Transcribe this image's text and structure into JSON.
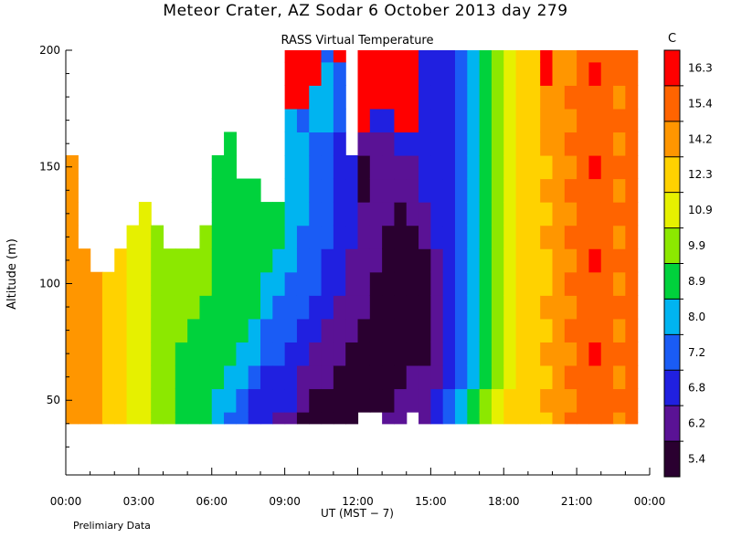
{
  "header": {
    "title": "Meteor Crater, AZ   Sodar    6 October 2013   day 279"
  },
  "footnote": "Prelimiary Data",
  "chart_data": {
    "type": "heatmap",
    "title": "RASS Virtual Temperature",
    "xlabel": "UT   (MST − 7)",
    "ylabel": "Altitude (m)",
    "x_ticks": [
      "00:00",
      "03:00",
      "06:00",
      "09:00",
      "12:00",
      "15:00",
      "18:00",
      "21:00",
      "00:00"
    ],
    "x_tick_hours": [
      0,
      3,
      6,
      9,
      12,
      15,
      18,
      21,
      24
    ],
    "xlim_hours": [
      0,
      24
    ],
    "y_ticks": [
      50,
      100,
      150,
      200
    ],
    "ylim": [
      18,
      200
    ],
    "colorbar": {
      "unit": "C",
      "labels": [
        "5.4",
        "6.2",
        "6.8",
        "7.2",
        "8.0",
        "8.9",
        "9.9",
        "10.9",
        "12.3",
        "14.2",
        "15.4",
        "16.3"
      ],
      "colors": [
        "#2a0030",
        "#5a1295",
        "#2020e0",
        "#1a5cf5",
        "#00b4f0",
        "#00d23c",
        "#8ce800",
        "#e6f000",
        "#ffd200",
        "#ff9600",
        "#ff6400",
        "#ff0000"
      ]
    },
    "data_note": "Values are bin indices 0-11 into colorbar.colors; null = no data",
    "altitudes_m": [
      40,
      50,
      60,
      70,
      80,
      90,
      100,
      110,
      120,
      130,
      140,
      150,
      160,
      170,
      180,
      190,
      200
    ],
    "hours": [
      0.0,
      0.5,
      1.0,
      1.5,
      2.0,
      2.5,
      3.0,
      3.5,
      4.0,
      4.5,
      5.0,
      5.5,
      6.0,
      6.5,
      7.0,
      7.5,
      8.0,
      8.5,
      9.0,
      9.5,
      10.0,
      10.5,
      11.0,
      11.5,
      12.0,
      12.5,
      13.0,
      13.5,
      14.0,
      14.5,
      15.0,
      15.5,
      16.0,
      16.5,
      17.0,
      17.5,
      18.0,
      18.5,
      19.0,
      19.5,
      20.0,
      20.5,
      21.0,
      21.5,
      22.0,
      22.5,
      23.0
    ],
    "values": [
      [
        9,
        9,
        9,
        9,
        9,
        9,
        9,
        9,
        9,
        9,
        9,
        9,
        null,
        null,
        null,
        null,
        null
      ],
      [
        9,
        9,
        9,
        9,
        9,
        9,
        9,
        9,
        null,
        null,
        null,
        null,
        null,
        null,
        null,
        null,
        null
      ],
      [
        9,
        9,
        9,
        9,
        9,
        9,
        9,
        null,
        null,
        null,
        null,
        null,
        null,
        null,
        null,
        null,
        null
      ],
      [
        8,
        8,
        8,
        8,
        8,
        8,
        8,
        null,
        null,
        null,
        null,
        null,
        null,
        null,
        null,
        null,
        null
      ],
      [
        8,
        8,
        8,
        8,
        8,
        8,
        8,
        8,
        null,
        null,
        null,
        null,
        null,
        null,
        null,
        null,
        null
      ],
      [
        7,
        7,
        7,
        7,
        7,
        7,
        7,
        7,
        7,
        null,
        null,
        null,
        null,
        null,
        null,
        null,
        null
      ],
      [
        7,
        7,
        7,
        7,
        7,
        7,
        7,
        7,
        7,
        7,
        null,
        null,
        null,
        null,
        null,
        null,
        null
      ],
      [
        6,
        6,
        6,
        6,
        6,
        6,
        6,
        6,
        6,
        null,
        null,
        null,
        null,
        null,
        null,
        null,
        null
      ],
      [
        6,
        6,
        6,
        6,
        6,
        6,
        6,
        6,
        null,
        null,
        null,
        null,
        null,
        null,
        null,
        null,
        null
      ],
      [
        5,
        5,
        5,
        5,
        6,
        6,
        6,
        6,
        null,
        null,
        null,
        null,
        null,
        null,
        null,
        null,
        null
      ],
      [
        5,
        5,
        5,
        5,
        5,
        6,
        6,
        6,
        null,
        null,
        null,
        null,
        null,
        null,
        null,
        null,
        null
      ],
      [
        5,
        5,
        5,
        5,
        5,
        5,
        6,
        6,
        6,
        null,
        null,
        null,
        null,
        null,
        null,
        null,
        null
      ],
      [
        4,
        4,
        5,
        5,
        5,
        5,
        5,
        5,
        5,
        5,
        5,
        5,
        null,
        null,
        null,
        null,
        null
      ],
      [
        3,
        4,
        4,
        5,
        5,
        5,
        5,
        5,
        5,
        5,
        5,
        5,
        5,
        null,
        null,
        null,
        null
      ],
      [
        3,
        3,
        4,
        4,
        5,
        5,
        5,
        5,
        5,
        5,
        5,
        null,
        null,
        null,
        null,
        null,
        null
      ],
      [
        2,
        2,
        3,
        4,
        4,
        5,
        5,
        5,
        5,
        5,
        5,
        null,
        null,
        null,
        null,
        null,
        null
      ],
      [
        2,
        2,
        2,
        3,
        3,
        4,
        4,
        5,
        5,
        5,
        null,
        null,
        null,
        null,
        null,
        null,
        null
      ],
      [
        1,
        2,
        2,
        3,
        3,
        3,
        4,
        4,
        5,
        5,
        null,
        null,
        null,
        null,
        null,
        null,
        null
      ],
      [
        1,
        2,
        2,
        2,
        3,
        3,
        3,
        4,
        4,
        4,
        4,
        4,
        4,
        4,
        11,
        11,
        11
      ],
      [
        0,
        1,
        1,
        2,
        2,
        3,
        3,
        3,
        3,
        4,
        4,
        4,
        4,
        3,
        11,
        11,
        11
      ],
      [
        0,
        0,
        1,
        1,
        2,
        2,
        3,
        3,
        3,
        3,
        3,
        3,
        3,
        4,
        4,
        11,
        11
      ],
      [
        0,
        0,
        1,
        1,
        1,
        2,
        2,
        2,
        3,
        3,
        3,
        3,
        3,
        4,
        4,
        4,
        3
      ],
      [
        0,
        0,
        0,
        1,
        1,
        1,
        2,
        2,
        2,
        2,
        2,
        2,
        2,
        3,
        3,
        3,
        11
      ],
      [
        0,
        0,
        0,
        0,
        1,
        1,
        1,
        1,
        2,
        2,
        2,
        2,
        null,
        null,
        null,
        null,
        null
      ],
      [
        null,
        0,
        0,
        0,
        0,
        1,
        1,
        1,
        1,
        1,
        0,
        0,
        1,
        11,
        11,
        11,
        11
      ],
      [
        null,
        0,
        0,
        0,
        0,
        0,
        0,
        1,
        1,
        1,
        1,
        1,
        1,
        2,
        11,
        11,
        11
      ],
      [
        1,
        0,
        0,
        0,
        0,
        0,
        0,
        0,
        0,
        1,
        1,
        1,
        1,
        2,
        11,
        11,
        11
      ],
      [
        1,
        1,
        0,
        0,
        0,
        0,
        0,
        0,
        0,
        0,
        1,
        1,
        2,
        11,
        11,
        11,
        11
      ],
      [
        null,
        1,
        1,
        0,
        0,
        0,
        0,
        0,
        0,
        1,
        1,
        1,
        2,
        11,
        11,
        11,
        11
      ],
      [
        1,
        1,
        1,
        0,
        0,
        0,
        0,
        0,
        1,
        1,
        2,
        2,
        2,
        2,
        2,
        2,
        2
      ],
      [
        2,
        2,
        1,
        1,
        1,
        1,
        1,
        1,
        2,
        2,
        2,
        2,
        2,
        2,
        2,
        2,
        2
      ],
      [
        3,
        3,
        2,
        2,
        2,
        2,
        2,
        2,
        2,
        2,
        2,
        2,
        2,
        2,
        2,
        2,
        2
      ],
      [
        4,
        4,
        3,
        3,
        3,
        3,
        3,
        3,
        3,
        3,
        3,
        3,
        3,
        3,
        3,
        3,
        3
      ],
      [
        5,
        5,
        4,
        4,
        4,
        4,
        4,
        4,
        4,
        4,
        4,
        4,
        4,
        4,
        4,
        4,
        4
      ],
      [
        6,
        6,
        5,
        5,
        5,
        5,
        5,
        5,
        5,
        5,
        5,
        5,
        5,
        5,
        5,
        5,
        5
      ],
      [
        7,
        7,
        6,
        6,
        6,
        6,
        6,
        6,
        6,
        6,
        6,
        6,
        6,
        6,
        6,
        6,
        6
      ],
      [
        8,
        8,
        7,
        7,
        7,
        7,
        7,
        7,
        7,
        7,
        7,
        7,
        7,
        7,
        7,
        7,
        7
      ],
      [
        8,
        8,
        8,
        8,
        8,
        8,
        8,
        8,
        8,
        8,
        8,
        8,
        8,
        8,
        8,
        8,
        8
      ],
      [
        8,
        8,
        8,
        8,
        8,
        8,
        8,
        8,
        8,
        8,
        8,
        8,
        8,
        8,
        8,
        8,
        8
      ],
      [
        8,
        9,
        8,
        9,
        8,
        9,
        8,
        8,
        9,
        8,
        9,
        8,
        9,
        9,
        9,
        11,
        11
      ],
      [
        9,
        9,
        9,
        9,
        9,
        9,
        9,
        9,
        9,
        9,
        9,
        9,
        9,
        9,
        9,
        9,
        9
      ],
      [
        10,
        9,
        10,
        9,
        10,
        9,
        10,
        9,
        10,
        9,
        10,
        9,
        10,
        9,
        10,
        9,
        9
      ],
      [
        10,
        10,
        10,
        10,
        10,
        10,
        10,
        10,
        10,
        10,
        10,
        10,
        10,
        10,
        10,
        10,
        10
      ],
      [
        10,
        10,
        10,
        11,
        10,
        10,
        10,
        11,
        10,
        10,
        10,
        11,
        10,
        10,
        10,
        11,
        10
      ],
      [
        10,
        10,
        10,
        10,
        10,
        10,
        10,
        10,
        10,
        10,
        10,
        10,
        10,
        10,
        10,
        10,
        10
      ],
      [
        9,
        10,
        9,
        10,
        9,
        10,
        9,
        10,
        9,
        10,
        9,
        10,
        9,
        10,
        9,
        10,
        10
      ],
      [
        10,
        10,
        10,
        10,
        10,
        10,
        10,
        10,
        10,
        10,
        10,
        10,
        10,
        10,
        10,
        10,
        10
      ]
    ]
  }
}
